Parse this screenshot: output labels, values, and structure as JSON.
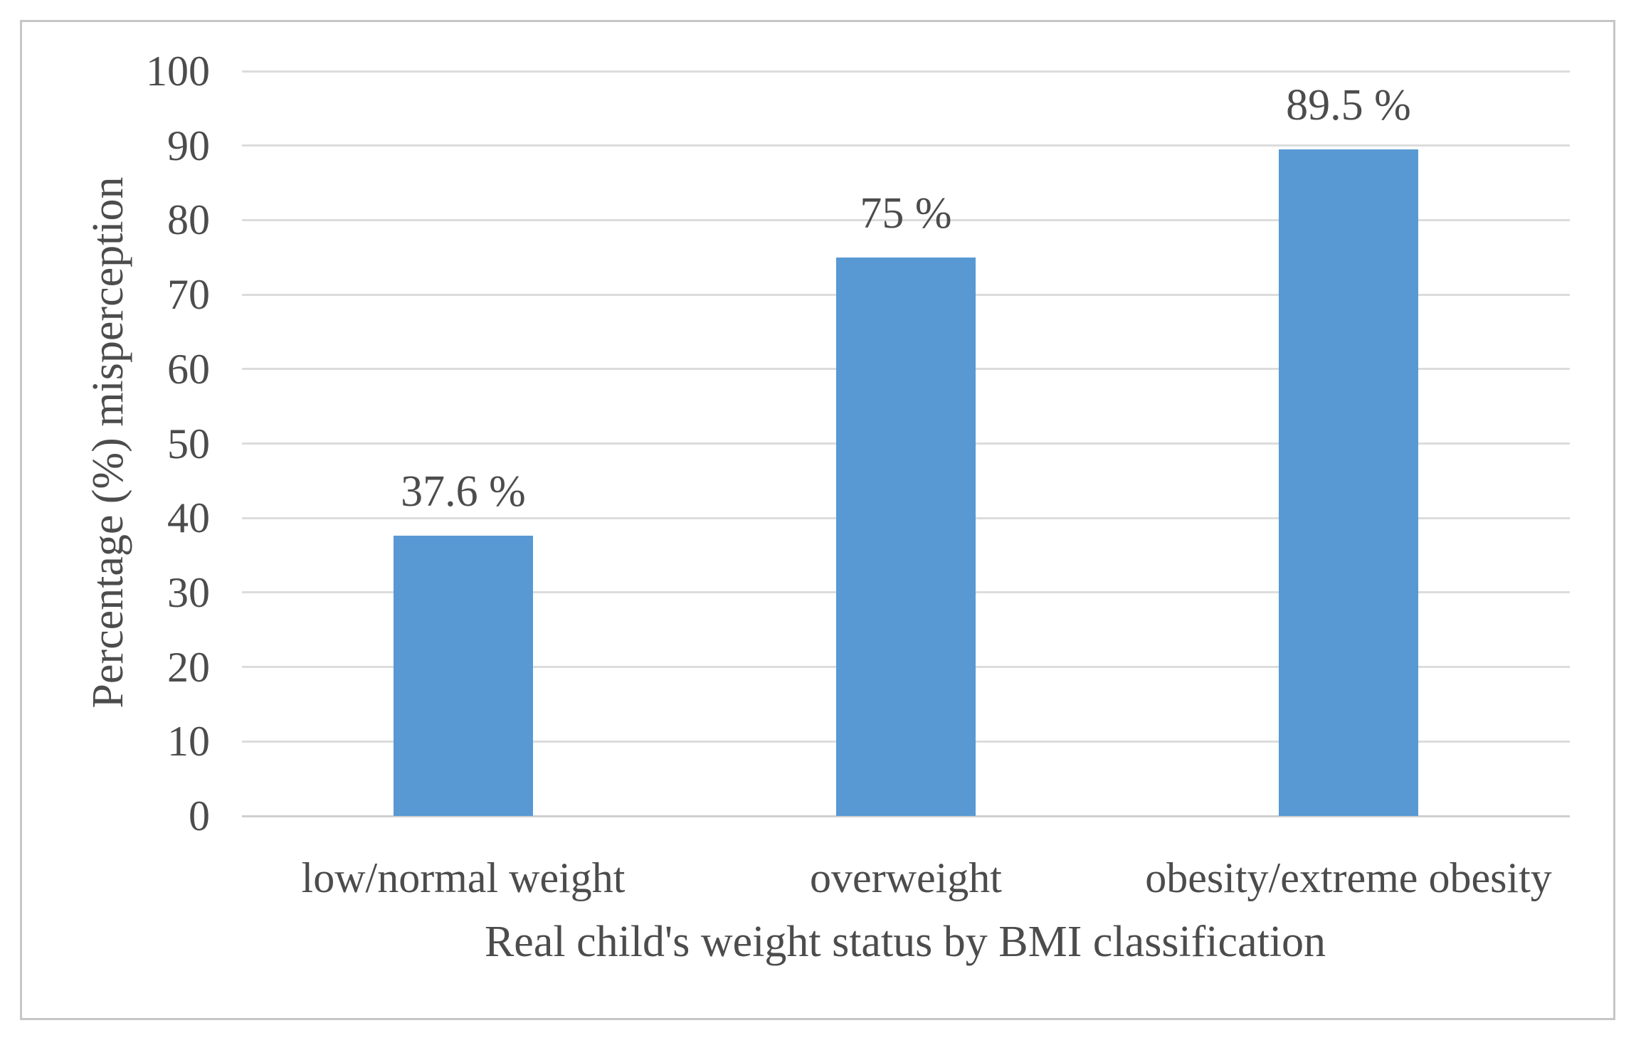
{
  "figure": {
    "background": "#ffffff",
    "frame_border_color": "#c6c6c6"
  },
  "chart_data": {
    "type": "bar",
    "title": "",
    "categories": [
      "low/normal weight",
      "overweight",
      "obesity/extreme obesity"
    ],
    "values": [
      37.6,
      75,
      89.5
    ],
    "value_labels": [
      "37.6 %",
      "75 %",
      "89.5 %"
    ],
    "xlabel": "Real child's weight status by BMI classification",
    "ylabel": "Percentage (%) misperception",
    "ylim": [
      0,
      100
    ],
    "yticks": [
      0,
      10,
      20,
      30,
      40,
      50,
      60,
      70,
      80,
      90,
      100
    ],
    "grid": "horizontal",
    "legend_position": "none",
    "bar_color": "#5899D3",
    "text_color": "#4c4c4c",
    "gridline_color": "#dcdcdc",
    "axis_line_color": "#cfcfcf"
  }
}
